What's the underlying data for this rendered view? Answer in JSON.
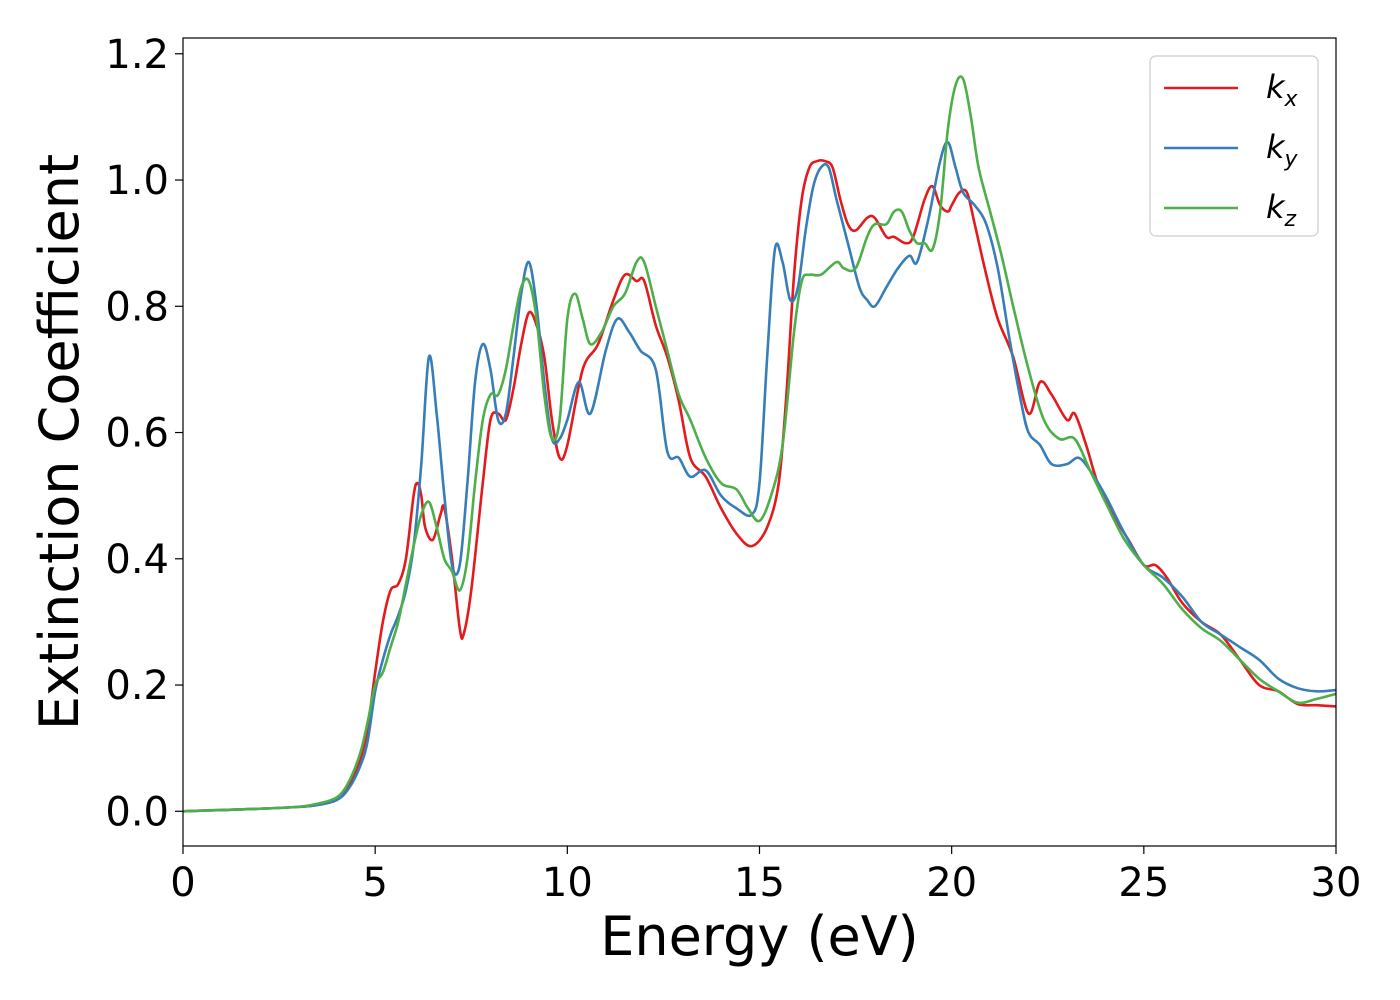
{
  "chart_data": {
    "type": "line",
    "xlabel": "Energy (eV)",
    "ylabel": "Extinction Coefficient",
    "xlim": [
      0,
      30
    ],
    "ylim": [
      -0.055,
      1.225
    ],
    "xticks": [
      0,
      5,
      10,
      15,
      20,
      25,
      30
    ],
    "yticks": [
      0.0,
      0.2,
      0.4,
      0.6,
      0.8,
      1.0,
      1.2
    ],
    "xtick_labels": [
      "0",
      "5",
      "10",
      "15",
      "20",
      "25",
      "30"
    ],
    "ytick_labels": [
      "0.0",
      "0.2",
      "0.4",
      "0.6",
      "0.8",
      "1.0",
      "1.2"
    ],
    "grid": false,
    "legend_position": "top-right",
    "series": [
      {
        "name": "k_x",
        "label_base": "k",
        "label_sub": "x",
        "color": "#e41a1c",
        "x": [
          0,
          1,
          2,
          3,
          3.5,
          4,
          4.3,
          4.6,
          4.8,
          5.0,
          5.2,
          5.4,
          5.6,
          5.8,
          6.0,
          6.1,
          6.2,
          6.3,
          6.5,
          6.7,
          6.8,
          7.0,
          7.2,
          7.3,
          7.5,
          7.8,
          8.0,
          8.2,
          8.4,
          8.6,
          8.8,
          9.0,
          9.2,
          9.4,
          9.6,
          9.8,
          10.0,
          10.4,
          10.8,
          11.2,
          11.5,
          11.8,
          12.0,
          12.3,
          12.6,
          12.9,
          13.2,
          13.6,
          14.0,
          14.4,
          14.8,
          15.2,
          15.5,
          15.7,
          15.9,
          16.1,
          16.3,
          16.5,
          16.7,
          16.9,
          17.1,
          17.3,
          17.5,
          17.8,
          18.0,
          18.3,
          18.5,
          18.8,
          19.0,
          19.3,
          19.5,
          19.7,
          19.9,
          20.0,
          20.2,
          20.4,
          20.6,
          20.9,
          21.2,
          21.6,
          22.0,
          22.3,
          22.6,
          23.0,
          23.2,
          23.5,
          23.8,
          24.2,
          24.6,
          25.0,
          25.3,
          25.6,
          26.0,
          26.5,
          27.0,
          27.5,
          28.0,
          28.5,
          29.0,
          29.5,
          30.0
        ],
        "y": [
          0,
          0.002,
          0.004,
          0.007,
          0.01,
          0.018,
          0.04,
          0.08,
          0.13,
          0.22,
          0.3,
          0.35,
          0.36,
          0.4,
          0.5,
          0.52,
          0.5,
          0.45,
          0.43,
          0.47,
          0.48,
          0.4,
          0.29,
          0.28,
          0.35,
          0.52,
          0.62,
          0.63,
          0.62,
          0.67,
          0.74,
          0.79,
          0.77,
          0.72,
          0.62,
          0.56,
          0.58,
          0.7,
          0.74,
          0.81,
          0.85,
          0.84,
          0.84,
          0.77,
          0.72,
          0.65,
          0.56,
          0.53,
          0.48,
          0.44,
          0.42,
          0.45,
          0.52,
          0.66,
          0.85,
          0.97,
          1.02,
          1.03,
          1.03,
          1.02,
          0.97,
          0.93,
          0.92,
          0.94,
          0.94,
          0.91,
          0.91,
          0.9,
          0.91,
          0.97,
          0.99,
          0.96,
          0.95,
          0.96,
          0.98,
          0.98,
          0.93,
          0.85,
          0.78,
          0.72,
          0.63,
          0.68,
          0.66,
          0.62,
          0.63,
          0.58,
          0.52,
          0.47,
          0.43,
          0.39,
          0.39,
          0.37,
          0.33,
          0.3,
          0.28,
          0.24,
          0.2,
          0.19,
          0.17,
          0.168,
          0.166
        ]
      },
      {
        "name": "k_y",
        "label_base": "k",
        "label_sub": "y",
        "color": "#377eb8",
        "x": [
          0,
          1,
          2,
          3,
          3.5,
          4,
          4.3,
          4.6,
          4.8,
          5.0,
          5.2,
          5.4,
          5.6,
          5.8,
          6.0,
          6.2,
          6.4,
          6.6,
          6.8,
          7.0,
          7.2,
          7.4,
          7.6,
          7.8,
          8.0,
          8.2,
          8.4,
          8.6,
          8.8,
          9.0,
          9.2,
          9.4,
          9.6,
          9.8,
          10.0,
          10.3,
          10.6,
          11.0,
          11.3,
          11.6,
          11.9,
          12.3,
          12.6,
          12.9,
          13.2,
          13.6,
          14.0,
          14.4,
          14.8,
          15.0,
          15.2,
          15.4,
          15.6,
          15.8,
          16.0,
          16.2,
          16.4,
          16.6,
          16.8,
          17.0,
          17.3,
          17.6,
          17.8,
          18.0,
          18.3,
          18.6,
          18.9,
          19.1,
          19.4,
          19.7,
          19.9,
          20.1,
          20.3,
          20.6,
          20.9,
          21.2,
          21.5,
          21.8,
          22.0,
          22.3,
          22.6,
          23.0,
          23.3,
          23.6,
          24.0,
          24.5,
          25.0,
          25.5,
          26.0,
          26.5,
          27.0,
          27.5,
          28.0,
          28.5,
          29.0,
          29.5,
          30.0
        ],
        "y": [
          0,
          0.002,
          0.004,
          0.007,
          0.01,
          0.018,
          0.035,
          0.07,
          0.11,
          0.19,
          0.24,
          0.28,
          0.31,
          0.35,
          0.42,
          0.55,
          0.72,
          0.63,
          0.5,
          0.39,
          0.39,
          0.52,
          0.68,
          0.74,
          0.7,
          0.62,
          0.63,
          0.72,
          0.82,
          0.87,
          0.8,
          0.68,
          0.59,
          0.59,
          0.62,
          0.68,
          0.63,
          0.73,
          0.78,
          0.76,
          0.73,
          0.7,
          0.57,
          0.56,
          0.53,
          0.54,
          0.5,
          0.48,
          0.47,
          0.52,
          0.72,
          0.89,
          0.87,
          0.81,
          0.83,
          0.92,
          0.99,
          1.02,
          1.02,
          0.97,
          0.9,
          0.83,
          0.81,
          0.8,
          0.83,
          0.86,
          0.88,
          0.87,
          0.94,
          1.03,
          1.06,
          1.02,
          0.98,
          0.96,
          0.93,
          0.86,
          0.75,
          0.65,
          0.6,
          0.58,
          0.55,
          0.55,
          0.56,
          0.54,
          0.5,
          0.44,
          0.39,
          0.37,
          0.34,
          0.3,
          0.28,
          0.26,
          0.24,
          0.21,
          0.195,
          0.19,
          0.192
        ]
      },
      {
        "name": "k_z",
        "label_base": "k",
        "label_sub": "z",
        "color": "#4daf4a",
        "x": [
          0,
          1,
          2,
          3,
          3.5,
          4,
          4.3,
          4.6,
          4.8,
          5.0,
          5.2,
          5.4,
          5.6,
          5.8,
          6.0,
          6.2,
          6.4,
          6.6,
          6.8,
          7.0,
          7.2,
          7.4,
          7.6,
          7.8,
          8.0,
          8.2,
          8.4,
          8.6,
          8.8,
          9.0,
          9.2,
          9.4,
          9.6,
          9.8,
          10.0,
          10.2,
          10.4,
          10.6,
          10.9,
          11.2,
          11.5,
          11.8,
          12.0,
          12.3,
          12.6,
          12.9,
          13.2,
          13.6,
          14.0,
          14.4,
          14.7,
          15.0,
          15.3,
          15.6,
          15.9,
          16.1,
          16.3,
          16.6,
          17.0,
          17.2,
          17.5,
          17.8,
          18.0,
          18.3,
          18.5,
          18.7,
          18.9,
          19.1,
          19.3,
          19.5,
          19.7,
          19.9,
          20.1,
          20.3,
          20.5,
          20.7,
          21.0,
          21.3,
          21.6,
          22.0,
          22.4,
          22.8,
          23.2,
          23.6,
          24.0,
          24.5,
          25.0,
          25.5,
          26.0,
          26.5,
          27.0,
          27.5,
          28.0,
          28.5,
          29.0,
          29.5,
          30.0
        ],
        "y": [
          0,
          0.002,
          0.004,
          0.007,
          0.012,
          0.022,
          0.045,
          0.09,
          0.14,
          0.2,
          0.22,
          0.26,
          0.3,
          0.36,
          0.42,
          0.47,
          0.49,
          0.45,
          0.4,
          0.38,
          0.35,
          0.4,
          0.52,
          0.62,
          0.66,
          0.66,
          0.7,
          0.77,
          0.83,
          0.84,
          0.78,
          0.66,
          0.59,
          0.62,
          0.78,
          0.82,
          0.78,
          0.74,
          0.76,
          0.8,
          0.82,
          0.87,
          0.87,
          0.8,
          0.73,
          0.66,
          0.62,
          0.56,
          0.52,
          0.51,
          0.48,
          0.46,
          0.5,
          0.58,
          0.76,
          0.84,
          0.85,
          0.85,
          0.87,
          0.86,
          0.86,
          0.91,
          0.93,
          0.93,
          0.95,
          0.95,
          0.92,
          0.9,
          0.9,
          0.89,
          0.95,
          1.08,
          1.15,
          1.16,
          1.1,
          1.02,
          0.95,
          0.88,
          0.8,
          0.7,
          0.62,
          0.59,
          0.59,
          0.54,
          0.49,
          0.43,
          0.39,
          0.36,
          0.32,
          0.29,
          0.27,
          0.24,
          0.21,
          0.19,
          0.172,
          0.178,
          0.186
        ]
      }
    ]
  }
}
